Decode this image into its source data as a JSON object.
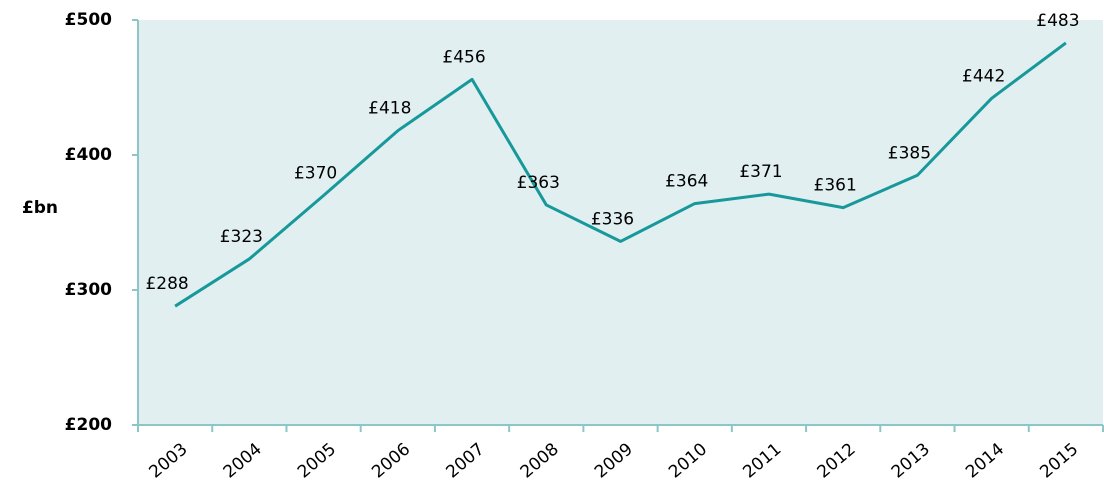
{
  "chart_data": {
    "type": "line",
    "y_label": "£bn",
    "categories": [
      "2003",
      "2004",
      "2005",
      "2006",
      "2007",
      "2008",
      "2009",
      "2010",
      "2011",
      "2012",
      "2013",
      "2014",
      "2015"
    ],
    "values": [
      288,
      323,
      370,
      418,
      456,
      363,
      336,
      364,
      371,
      361,
      385,
      442,
      483
    ],
    "value_labels": [
      "£288",
      "£323",
      "£370",
      "£418",
      "£456",
      "£363",
      "£336",
      "£364",
      "£371",
      "£361",
      "£385",
      "£442",
      "£483"
    ],
    "color": "#17989a",
    "ylim": [
      200,
      500
    ],
    "yticks": [
      {
        "value": 200,
        "label": "£200"
      },
      {
        "value": 300,
        "label": "£300"
      },
      {
        "value": 400,
        "label": "£400"
      },
      {
        "value": 500,
        "label": "£500"
      }
    ]
  }
}
